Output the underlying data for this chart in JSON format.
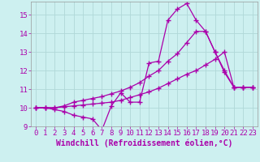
{
  "title": "",
  "xlabel": "Windchill (Refroidissement éolien,°C)",
  "bg_color": "#cdf0f0",
  "grid_color": "#b0d8d8",
  "line_color": "#aa00aa",
  "xlim": [
    -0.5,
    23.5
  ],
  "ylim": [
    9,
    15.7
  ],
  "xticks": [
    0,
    1,
    2,
    3,
    4,
    5,
    6,
    7,
    8,
    9,
    10,
    11,
    12,
    13,
    14,
    15,
    16,
    17,
    18,
    19,
    20,
    21,
    22,
    23
  ],
  "yticks": [
    9,
    10,
    11,
    12,
    13,
    14,
    15
  ],
  "line1_x": [
    0,
    1,
    2,
    3,
    4,
    5,
    6,
    7,
    8,
    9,
    10,
    11,
    12,
    13,
    14,
    15,
    16,
    17,
    18,
    19,
    20,
    21,
    22,
    23
  ],
  "line1_y": [
    10.0,
    10.0,
    9.9,
    9.8,
    9.6,
    9.5,
    9.4,
    8.8,
    10.1,
    10.8,
    10.3,
    10.3,
    12.4,
    12.5,
    14.7,
    15.3,
    15.6,
    14.7,
    14.1,
    13.0,
    11.9,
    11.1,
    11.1,
    11.1
  ],
  "line2_x": [
    0,
    1,
    2,
    3,
    4,
    5,
    6,
    7,
    8,
    9,
    10,
    11,
    12,
    13,
    14,
    15,
    16,
    17,
    18,
    19,
    20,
    21,
    22,
    23
  ],
  "line2_y": [
    10.0,
    10.0,
    10.0,
    10.05,
    10.1,
    10.15,
    10.2,
    10.25,
    10.3,
    10.4,
    10.55,
    10.7,
    10.85,
    11.05,
    11.3,
    11.55,
    11.8,
    12.0,
    12.3,
    12.6,
    13.0,
    11.1,
    11.1,
    11.1
  ],
  "line3_x": [
    0,
    1,
    2,
    3,
    4,
    5,
    6,
    7,
    8,
    9,
    10,
    11,
    12,
    13,
    14,
    15,
    16,
    17,
    18,
    19,
    20,
    21,
    22,
    23
  ],
  "line3_y": [
    10.0,
    10.0,
    10.0,
    10.1,
    10.3,
    10.4,
    10.5,
    10.6,
    10.75,
    10.9,
    11.1,
    11.35,
    11.7,
    12.0,
    12.5,
    12.9,
    13.5,
    14.1,
    14.1,
    13.0,
    12.0,
    11.1,
    11.1,
    11.1
  ],
  "marker": "+",
  "markersize": 4,
  "linewidth": 0.9,
  "xlabel_fontsize": 7,
  "tick_fontsize": 6.5
}
